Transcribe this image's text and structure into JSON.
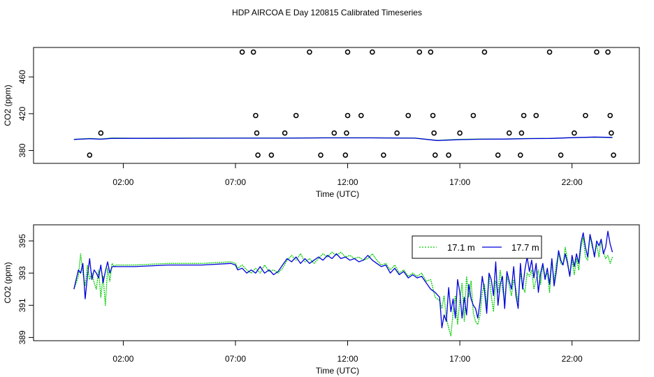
{
  "figure": {
    "title": "HDP AIRCOA E  Day 120815  Calibrated Timeseries"
  },
  "chart_data": [
    {
      "type": "scatter",
      "title": "",
      "xlabel": "Time (UTC)",
      "ylabel": "CO2 (ppm)",
      "x_unit": "hours UTC",
      "xlim": [
        -2.0,
        25.0
      ],
      "ylim": [
        366,
        492
      ],
      "x_ticks": [
        2,
        7,
        12,
        17,
        22
      ],
      "x_tick_labels": [
        "02:00",
        "07:00",
        "12:00",
        "17:00",
        "22:00"
      ],
      "y_ticks": [
        380,
        420,
        460
      ],
      "y_tick_labels": [
        "380",
        "420",
        "460"
      ],
      "grid": false,
      "legend": "none",
      "calibration_points": [
        {
          "x": 0.5,
          "y": 375
        },
        {
          "x": 1.0,
          "y": 399
        },
        {
          "x": 7.3,
          "y": 487
        },
        {
          "x": 7.8,
          "y": 487
        },
        {
          "x": 7.9,
          "y": 418
        },
        {
          "x": 7.95,
          "y": 399
        },
        {
          "x": 8.0,
          "y": 375
        },
        {
          "x": 8.6,
          "y": 375
        },
        {
          "x": 9.2,
          "y": 399
        },
        {
          "x": 9.7,
          "y": 418
        },
        {
          "x": 10.3,
          "y": 487
        },
        {
          "x": 10.8,
          "y": 375
        },
        {
          "x": 11.4,
          "y": 399
        },
        {
          "x": 11.9,
          "y": 375
        },
        {
          "x": 11.95,
          "y": 399
        },
        {
          "x": 12.0,
          "y": 418
        },
        {
          "x": 12.0,
          "y": 487
        },
        {
          "x": 12.6,
          "y": 418
        },
        {
          "x": 13.1,
          "y": 487
        },
        {
          "x": 13.6,
          "y": 375
        },
        {
          "x": 14.2,
          "y": 399
        },
        {
          "x": 14.7,
          "y": 418
        },
        {
          "x": 15.2,
          "y": 487
        },
        {
          "x": 15.7,
          "y": 487
        },
        {
          "x": 15.8,
          "y": 418
        },
        {
          "x": 15.85,
          "y": 399
        },
        {
          "x": 15.9,
          "y": 375
        },
        {
          "x": 16.5,
          "y": 375
        },
        {
          "x": 17.0,
          "y": 399
        },
        {
          "x": 17.6,
          "y": 418
        },
        {
          "x": 18.1,
          "y": 487
        },
        {
          "x": 18.7,
          "y": 375
        },
        {
          "x": 19.2,
          "y": 399
        },
        {
          "x": 19.7,
          "y": 375
        },
        {
          "x": 19.75,
          "y": 399
        },
        {
          "x": 19.85,
          "y": 418
        },
        {
          "x": 20.4,
          "y": 418
        },
        {
          "x": 21.0,
          "y": 487
        },
        {
          "x": 21.5,
          "y": 375
        },
        {
          "x": 22.1,
          "y": 399
        },
        {
          "x": 22.6,
          "y": 418
        },
        {
          "x": 23.1,
          "y": 487
        },
        {
          "x": 23.6,
          "y": 487
        },
        {
          "x": 23.7,
          "y": 418
        },
        {
          "x": 23.75,
          "y": 399
        },
        {
          "x": 23.85,
          "y": 375
        }
      ],
      "series": [
        {
          "color": "#00cc00",
          "x": [
            -0.2,
            0.5,
            1.0,
            1.5,
            2.5,
            5.0,
            7.0,
            9.0,
            11.0,
            13.0,
            15.0,
            16.0,
            17.0,
            18.0,
            19.0,
            20.0,
            21.0,
            22.0,
            23.0,
            23.8
          ],
          "y": [
            392,
            393,
            392.5,
            393.5,
            393.3,
            393.5,
            393.5,
            393.5,
            393.8,
            393.8,
            393.5,
            391,
            392,
            392.5,
            392.5,
            393,
            393,
            394,
            394.5,
            394
          ]
        },
        {
          "color": "#0000dd",
          "x": [
            -0.2,
            0.5,
            1.0,
            1.5,
            2.5,
            5.0,
            7.0,
            9.0,
            11.0,
            13.0,
            15.0,
            16.0,
            17.0,
            18.0,
            19.0,
            20.0,
            21.0,
            22.0,
            23.0,
            23.8
          ],
          "y": [
            392,
            392.8,
            392.3,
            393.2,
            393.2,
            393.3,
            393.4,
            393.4,
            393.7,
            393.7,
            393.4,
            390.8,
            391.8,
            392.3,
            392.4,
            392.9,
            393.1,
            393.9,
            394.6,
            394.2
          ]
        }
      ]
    },
    {
      "type": "line",
      "title": "",
      "xlabel": "Time (UTC)",
      "ylabel": "CO2 (ppm)",
      "x_unit": "hours UTC",
      "xlim": [
        -2.0,
        25.0
      ],
      "ylim": [
        388.8,
        396.0
      ],
      "x_ticks": [
        2,
        7,
        12,
        17,
        22
      ],
      "x_tick_labels": [
        "02:00",
        "07:00",
        "12:00",
        "17:00",
        "22:00"
      ],
      "y_ticks": [
        389,
        391,
        393,
        395
      ],
      "y_tick_labels": [
        "389",
        "391",
        "393",
        "395"
      ],
      "grid": false,
      "legend": "top-right",
      "series": [
        {
          "name": "17.1 m",
          "color": "#00cc00",
          "dash": "dotted",
          "x": [
            -0.2,
            0.0,
            0.1,
            0.2,
            0.3,
            0.4,
            0.5,
            0.6,
            0.7,
            0.8,
            0.9,
            1.0,
            1.1,
            1.2,
            1.3,
            1.4,
            1.5,
            1.6,
            1.7,
            1.8,
            2.5,
            4.0,
            5.5,
            6.8,
            7.0,
            7.1,
            7.3,
            7.5,
            7.7,
            7.9,
            8.1,
            8.3,
            8.5,
            8.7,
            8.9,
            9.1,
            9.3,
            9.5,
            9.7,
            9.9,
            10.1,
            10.3,
            10.5,
            10.7,
            10.9,
            11.1,
            11.3,
            11.5,
            11.7,
            11.9,
            12.1,
            12.3,
            12.5,
            12.7,
            12.9,
            13.1,
            13.3,
            13.5,
            13.7,
            13.9,
            14.1,
            14.3,
            14.5,
            14.7,
            14.9,
            15.1,
            15.3,
            15.5,
            15.7,
            15.9,
            16.1,
            16.2,
            16.3,
            16.4,
            16.5,
            16.6,
            16.7,
            16.8,
            16.9,
            17.0,
            17.1,
            17.2,
            17.3,
            17.4,
            17.5,
            17.6,
            17.7,
            17.8,
            17.9,
            18.0,
            18.1,
            18.2,
            18.3,
            18.4,
            18.5,
            18.6,
            18.7,
            18.8,
            18.9,
            19.0,
            19.1,
            19.2,
            19.3,
            19.4,
            19.5,
            19.6,
            19.7,
            19.8,
            19.9,
            20.0,
            20.1,
            20.2,
            20.3,
            20.4,
            20.5,
            20.6,
            20.7,
            20.8,
            20.9,
            21.0,
            21.1,
            21.2,
            21.3,
            21.4,
            21.5,
            21.6,
            21.7,
            21.8,
            21.9,
            22.0,
            22.1,
            22.2,
            22.3,
            22.4,
            22.5,
            22.6,
            22.7,
            22.8,
            22.9,
            23.0,
            23.1,
            23.2,
            23.3,
            23.4,
            23.5,
            23.6,
            23.7,
            23.8
          ],
          "y": [
            392.0,
            392.8,
            394.2,
            393.0,
            392.2,
            393.5,
            392.6,
            393.0,
            392.4,
            392.0,
            393.2,
            391.5,
            392.8,
            391.0,
            393.3,
            392.5,
            393.6,
            393.4,
            393.5,
            393.5,
            393.5,
            393.6,
            393.6,
            393.7,
            393.6,
            393.3,
            393.5,
            393.2,
            393.0,
            393.3,
            393.0,
            393.5,
            393.1,
            393.2,
            393.0,
            393.3,
            393.8,
            394.1,
            393.8,
            394.2,
            393.7,
            393.9,
            393.6,
            393.9,
            394.2,
            394.0,
            394.3,
            394.1,
            394.3,
            394.0,
            394.1,
            393.9,
            394.0,
            393.8,
            393.9,
            394.2,
            393.8,
            393.5,
            393.6,
            393.2,
            393.5,
            393.0,
            393.2,
            392.8,
            393.0,
            392.8,
            393.0,
            392.5,
            392.6,
            391.5,
            391.3,
            390.8,
            391.6,
            390.2,
            389.6,
            389.1,
            390.6,
            391.6,
            389.8,
            391.3,
            392.4,
            390.0,
            392.8,
            391.5,
            392.5,
            390.5,
            390.0,
            389.8,
            390.4,
            391.8,
            392.3,
            391.0,
            392.9,
            391.6,
            390.6,
            392.5,
            391.8,
            393.2,
            392.0,
            391.2,
            392.8,
            392.2,
            391.6,
            392.6,
            392.0,
            391.2,
            393.0,
            392.2,
            391.8,
            393.0,
            392.8,
            393.2,
            392.0,
            392.6,
            393.2,
            392.3,
            393.5,
            392.8,
            393.0,
            391.8,
            393.8,
            392.5,
            393.6,
            394.2,
            393.6,
            393.5,
            394.6,
            393.8,
            392.8,
            393.8,
            392.9,
            393.9,
            393.2,
            394.6,
            395.2,
            394.0,
            393.8,
            395.3,
            394.6,
            394.2,
            394.8,
            394.0,
            395.1,
            394.3,
            393.9,
            394.1,
            393.6,
            394.0
          ]
        },
        {
          "name": "17.7 m",
          "color": "#0000dd",
          "dash": "solid",
          "x": [
            -0.2,
            0.0,
            0.1,
            0.2,
            0.3,
            0.4,
            0.5,
            0.6,
            0.7,
            0.8,
            0.9,
            1.0,
            1.1,
            1.2,
            1.3,
            1.4,
            1.5,
            1.6,
            1.7,
            1.8,
            2.5,
            4.0,
            5.5,
            6.8,
            7.0,
            7.1,
            7.3,
            7.5,
            7.7,
            7.9,
            8.1,
            8.3,
            8.5,
            8.7,
            8.9,
            9.1,
            9.3,
            9.5,
            9.7,
            9.9,
            10.1,
            10.3,
            10.5,
            10.7,
            10.9,
            11.1,
            11.3,
            11.5,
            11.7,
            11.9,
            12.1,
            12.3,
            12.5,
            12.7,
            12.9,
            13.1,
            13.3,
            13.5,
            13.7,
            13.9,
            14.1,
            14.3,
            14.5,
            14.7,
            14.9,
            15.1,
            15.3,
            15.5,
            15.7,
            15.9,
            16.1,
            16.2,
            16.3,
            16.4,
            16.5,
            16.6,
            16.7,
            16.8,
            16.9,
            17.0,
            17.1,
            17.2,
            17.3,
            17.4,
            17.5,
            17.6,
            17.7,
            17.8,
            17.9,
            18.0,
            18.1,
            18.2,
            18.3,
            18.4,
            18.5,
            18.6,
            18.7,
            18.8,
            18.9,
            19.0,
            19.1,
            19.2,
            19.3,
            19.4,
            19.5,
            19.6,
            19.7,
            19.8,
            19.9,
            20.0,
            20.1,
            20.2,
            20.3,
            20.4,
            20.5,
            20.6,
            20.7,
            20.8,
            20.9,
            21.0,
            21.1,
            21.2,
            21.3,
            21.4,
            21.5,
            21.6,
            21.7,
            21.8,
            21.9,
            22.0,
            22.1,
            22.2,
            22.3,
            22.4,
            22.5,
            22.6,
            22.7,
            22.8,
            22.9,
            23.0,
            23.1,
            23.2,
            23.3,
            23.4,
            23.5,
            23.6,
            23.7,
            23.8
          ],
          "y": [
            392.0,
            393.2,
            393.0,
            393.6,
            391.4,
            392.8,
            393.9,
            392.6,
            393.2,
            393.0,
            392.7,
            393.5,
            392.4,
            393.1,
            393.7,
            393.0,
            393.4,
            393.4,
            393.4,
            393.4,
            393.4,
            393.5,
            393.5,
            393.6,
            393.5,
            393.2,
            393.3,
            393.0,
            393.2,
            393.0,
            393.4,
            393.0,
            393.2,
            392.9,
            393.1,
            393.5,
            393.9,
            393.7,
            394.0,
            393.6,
            393.9,
            393.6,
            393.8,
            394.0,
            393.8,
            394.1,
            393.9,
            394.2,
            393.9,
            394.0,
            393.8,
            393.9,
            393.7,
            393.8,
            394.1,
            393.8,
            393.6,
            393.4,
            393.5,
            393.0,
            393.3,
            392.9,
            393.1,
            392.7,
            392.9,
            392.7,
            392.8,
            392.4,
            392.0,
            391.8,
            391.5,
            389.6,
            390.4,
            390.0,
            392.1,
            390.6,
            391.4,
            390.2,
            392.6,
            391.8,
            390.2,
            391.5,
            390.4,
            392.3,
            391.4,
            391.0,
            390.8,
            390.2,
            391.2,
            392.8,
            391.9,
            390.5,
            393.0,
            392.6,
            391.6,
            393.7,
            391.0,
            392.3,
            392.8,
            390.8,
            393.1,
            392.5,
            392.0,
            393.4,
            391.6,
            390.8,
            393.6,
            392.0,
            393.2,
            394.0,
            393.1,
            393.8,
            392.7,
            393.6,
            391.8,
            393.0,
            393.6,
            392.6,
            393.3,
            392.3,
            393.9,
            392.2,
            393.1,
            394.4,
            393.8,
            393.5,
            394.2,
            393.6,
            392.8,
            394.1,
            393.4,
            394.2,
            393.6,
            394.9,
            395.5,
            394.6,
            394.0,
            395.4,
            394.8,
            394.0,
            395.0,
            394.7,
            395.1,
            394.2,
            394.6,
            395.6,
            394.8,
            394.3
          ]
        }
      ]
    }
  ]
}
